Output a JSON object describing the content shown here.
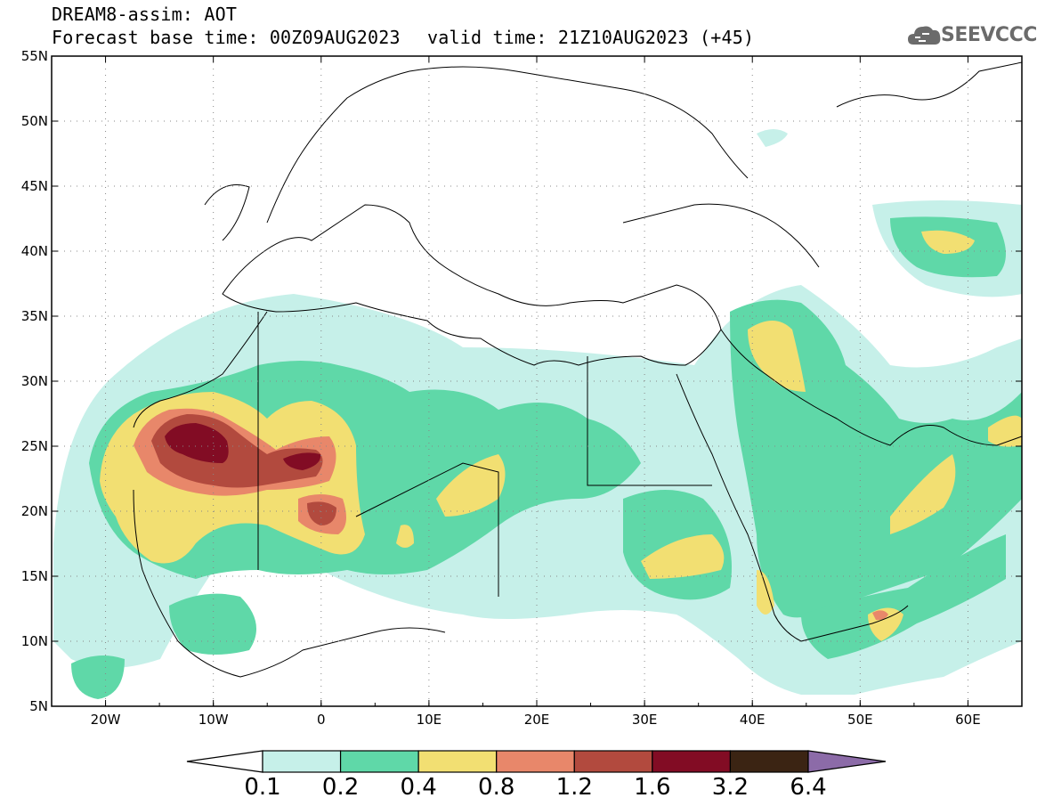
{
  "header": {
    "title": "DREAM8-assim: AOT",
    "base_time": "Forecast base time: 00Z09AUG2023",
    "valid_time": "valid time: 21Z10AUG2023 (+45)"
  },
  "logo": {
    "text": "SEEVCCC",
    "icon": "cloud-icon"
  },
  "map": {
    "lon_range": [
      -25,
      65
    ],
    "lat_range": [
      5,
      55
    ],
    "x_ticks": [
      "20W",
      "10W",
      "0",
      "10E",
      "20E",
      "30E",
      "40E",
      "50E",
      "60E"
    ],
    "y_ticks": [
      "55N",
      "50N",
      "45N",
      "40N",
      "35N",
      "30N",
      "25N",
      "20N",
      "15N",
      "10N",
      "5N"
    ],
    "grid": "dotted"
  },
  "colorbar": {
    "labels": [
      "0.1",
      "0.2",
      "0.4",
      "0.8",
      "1.2",
      "1.6",
      "3.2",
      "6.4"
    ],
    "colors": [
      "#c6f0e9",
      "#5fd8a8",
      "#f2df72",
      "#e8876a",
      "#b24a3e",
      "#820c24",
      "#3b2413",
      "#8c6ba8"
    ]
  }
}
